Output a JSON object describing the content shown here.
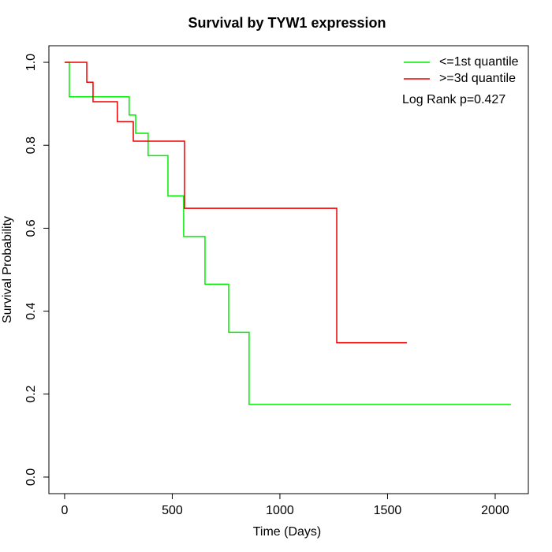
{
  "chart_data": {
    "type": "step",
    "title": "Survival by TYW1 expression",
    "xlabel": "Time (Days)",
    "ylabel": "Survival Probability",
    "annotation": "Log Rank p=0.427",
    "legend": "topright",
    "xlim": [
      -73,
      2154
    ],
    "xticks": [
      0,
      500,
      1000,
      1500,
      2000
    ],
    "ylim": [
      -0.04,
      1.04
    ],
    "yticks": [
      {
        "value": 0,
        "label": "0.0"
      },
      0.2,
      0.4,
      0.6,
      0.8,
      {
        "value": 1,
        "label": "1.0"
      }
    ],
    "series": [
      {
        "name": "<=1st quantile",
        "color": "#00ee00",
        "x": [
          0,
          22,
          300,
          330,
          388,
          480,
          553,
          652,
          762,
          857,
          2073
        ],
        "values": [
          1.0,
          0.917,
          0.873,
          0.829,
          0.775,
          0.678,
          0.58,
          0.465,
          0.349,
          0.175,
          0.175
        ]
      },
      {
        "name": ">=3d quantile",
        "color": "#ee0000",
        "x": [
          0,
          103,
          132,
          245,
          319,
          557,
          1264,
          1590
        ],
        "values": [
          1.0,
          0.952,
          0.905,
          0.857,
          0.81,
          0.648,
          0.324,
          0.324
        ]
      }
    ]
  }
}
